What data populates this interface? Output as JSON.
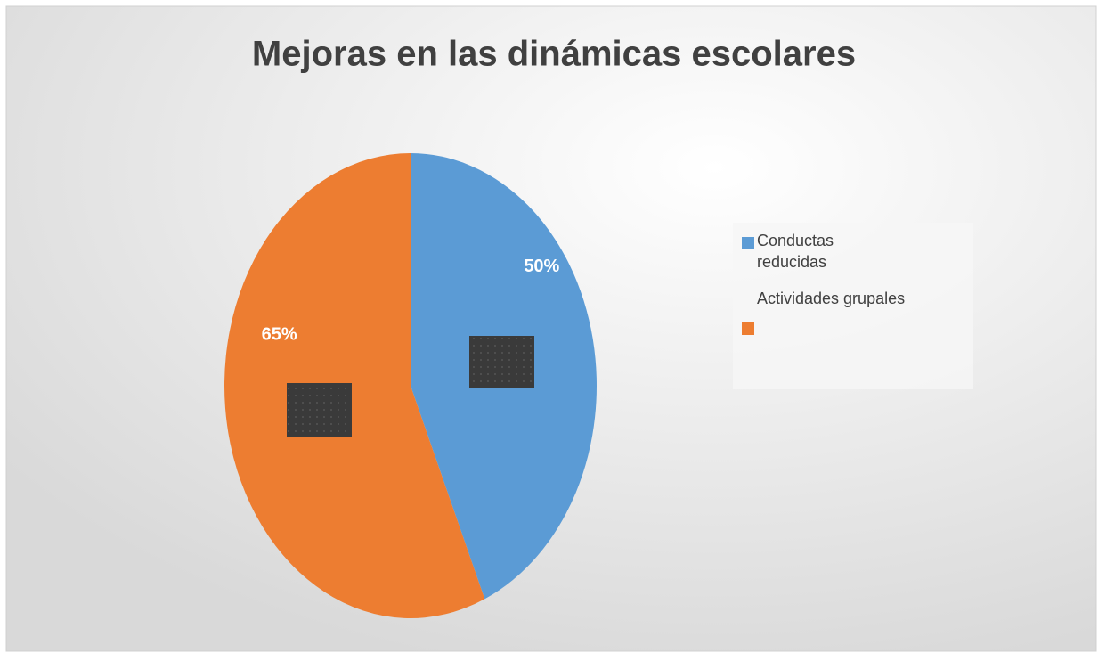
{
  "chart_data": {
    "type": "pie",
    "title": "Mejoras en las dinámicas escolares",
    "categories": [
      "Conductas reducidas",
      "Actividades grupales"
    ],
    "values": [
      50,
      65
    ],
    "value_labels": [
      "50%",
      "65%"
    ],
    "colors": [
      "#5b9bd5",
      "#ed7d31"
    ]
  }
}
